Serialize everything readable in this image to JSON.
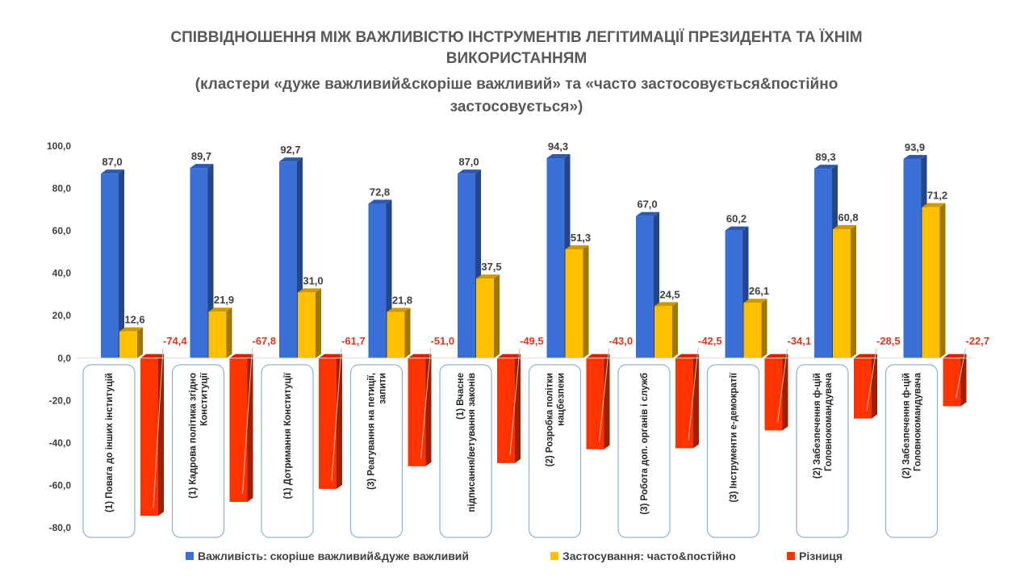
{
  "chart_data": {
    "type": "bar",
    "title": [
      "СПІВВІДНОШЕННЯ МІЖ ВАЖЛИВІСТЮ ІНСТРУМЕНТІВ ЛЕГІТИМАЦІЇ ПРЕЗИДЕНТА ТА ЇХНІМ",
      "ВИКОРИСТАННЯМ",
      "(кластери «дуже важливий&скоріше важливий» та «часто застосовується&постійно",
      "застосовується»)"
    ],
    "ylim": [
      -80,
      100
    ],
    "yticks": [
      -80,
      -60,
      -40,
      -20,
      0,
      20,
      40,
      60,
      80,
      100
    ],
    "ytick_labels": [
      "-80,0",
      "-60,0",
      "-40,0",
      "-20,0",
      "0,0",
      "20,0",
      "40,0",
      "60,0",
      "80,0",
      "100,0"
    ],
    "categories": [
      [
        "(1) Повага до  інших інституцій"
      ],
      [
        "(1) Кадрова політика згідно",
        "Конституції"
      ],
      [
        "(1) Дотримання Конституції"
      ],
      [
        "(3) Реагування на петиції,",
        "запити"
      ],
      [
        "(1) Вчасне",
        "підписання/ветування законів"
      ],
      [
        "(2) Розробка політки",
        "нацбезпеки"
      ],
      [
        "(3) Робота доп. органів і служб"
      ],
      [
        "(3) Інструменти е-демократії"
      ],
      [
        "(2) Забезпечення ф-цій",
        "Головнокомандувача"
      ],
      [
        "(2) Забезпечення ф-цій",
        "Головнокомандувача"
      ]
    ],
    "series": [
      {
        "name": "Важливість: скоріше важливий&дуже важливий",
        "color": "#3a6fd8",
        "values": [
          87.0,
          89.7,
          92.7,
          72.8,
          87.0,
          94.3,
          67.0,
          60.2,
          89.3,
          93.9
        ],
        "labels": [
          "87,0",
          "89,7",
          "92,7",
          "72,8",
          "87,0",
          "94,3",
          "67,0",
          "60,2",
          "89,3",
          "93,9"
        ]
      },
      {
        "name": "Застосування: часто&постійно",
        "color": "#ffc000",
        "values": [
          12.6,
          21.9,
          31.0,
          21.8,
          37.5,
          51.3,
          24.5,
          26.1,
          60.8,
          71.2
        ],
        "labels": [
          "12,6",
          "21,9",
          "31,0",
          "21,8",
          "37,5",
          "51,3",
          "24,5",
          "26,1",
          "60,8",
          "71,2"
        ]
      },
      {
        "name": "Різниця",
        "color": "#ff3300",
        "values": [
          -74.4,
          -67.8,
          -61.7,
          -51.0,
          -49.5,
          -43.0,
          -42.5,
          -34.1,
          -28.5,
          -22.7
        ],
        "labels": [
          "-74,4",
          "-67,8",
          "-61,7",
          "-51,0",
          "-49,5",
          "-43,0",
          "-42,5",
          "-34,1",
          "-28,5",
          "-22,7"
        ]
      }
    ],
    "legend_position": "bottom",
    "grid": false
  }
}
